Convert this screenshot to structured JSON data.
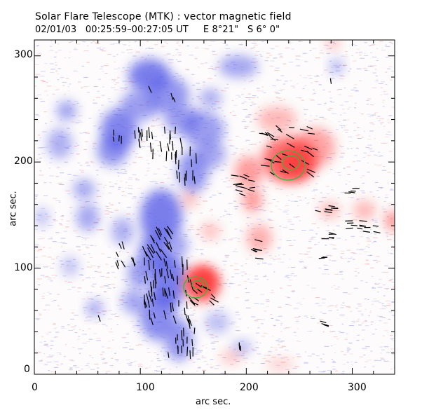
{
  "header": {
    "title": "Solar Flare Telescope (MTK) : vector magnetic field",
    "subtitle": "02/01/03   00:25:59–00:27:05 UT     E 8°21\"   S 6° 0\""
  },
  "axes": {
    "xlabel": "arc sec.",
    "ylabel": "arc sec.",
    "xlim": [
      0,
      340
    ],
    "ylim": [
      0,
      315
    ],
    "xticks": [
      "0",
      "100",
      "200",
      "300"
    ],
    "yticks": [
      "0",
      "100",
      "200",
      "300"
    ]
  },
  "colors": {
    "positive_polarity": "#ff3c3c",
    "negative_polarity": "#4f55e6",
    "vectors": "#000000",
    "contours": "#3cb43c"
  }
}
